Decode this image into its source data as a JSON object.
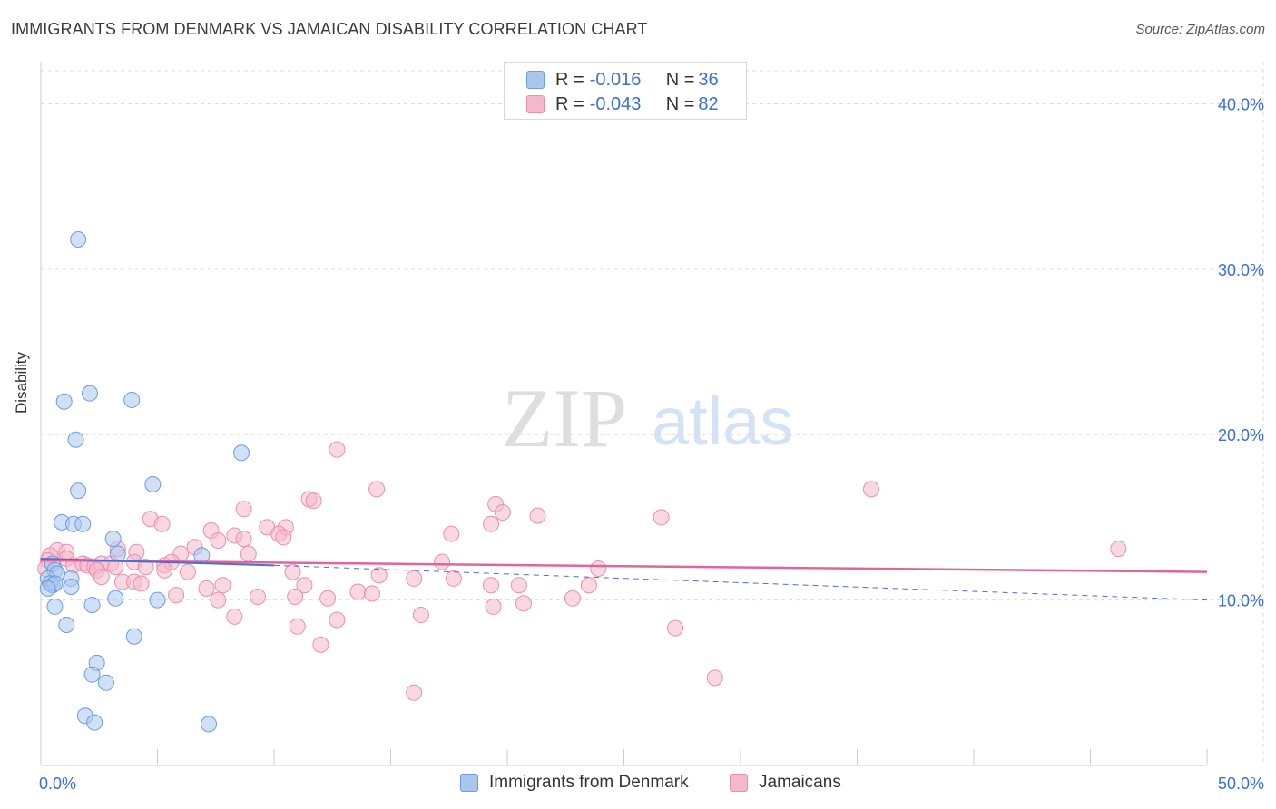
{
  "title": "IMMIGRANTS FROM DENMARK VS JAMAICAN DISABILITY CORRELATION CHART",
  "source": "Source: ZipAtlas.com",
  "watermark": {
    "zip": "ZIP",
    "atlas": "atlas"
  },
  "colors": {
    "blue_fill": "#a9c6ef",
    "blue_stroke": "#6f9be0",
    "blue_line": "#4a6fd0",
    "pink_fill": "#f5b8cb",
    "pink_stroke": "#ea8fae",
    "pink_line": "#e2659a",
    "axis_text": "#3b6fd1",
    "grid": "#dddddd"
  },
  "legend": {
    "rows": [
      {
        "r_label": "R = ",
        "r_value": "-0.016",
        "n_label": "N = ",
        "n_value": "36"
      },
      {
        "r_label": "R = ",
        "r_value": "-0.043",
        "n_label": "N = ",
        "n_value": "82"
      }
    ]
  },
  "bottom_legend": [
    "Immigrants from Denmark",
    "Jamaicans"
  ],
  "chart_data": {
    "type": "scatter",
    "title": "IMMIGRANTS FROM DENMARK VS JAMAICAN DISABILITY CORRELATION CHART",
    "xlabel": "",
    "ylabel": "Disability",
    "xlim": [
      0,
      50
    ],
    "ylim": [
      0,
      42
    ],
    "x_tick_labels": [
      "0.0%",
      "50.0%"
    ],
    "y_ticks": [
      10,
      20,
      30,
      40
    ],
    "y_tick_labels": [
      "10.0%",
      "20.0%",
      "30.0%",
      "40.0%"
    ],
    "grid": true,
    "series": [
      {
        "name": "Immigrants from Denmark",
        "r": -0.016,
        "n": 36,
        "trend": {
          "x": [
            0,
            10
          ],
          "y": [
            12.5,
            12.1
          ],
          "dashed_extension": {
            "x": [
              10,
              50
            ],
            "y": [
              12.1,
              10.0
            ]
          }
        },
        "points": [
          [
            1.6,
            31.8
          ],
          [
            2.1,
            22.5
          ],
          [
            3.9,
            22.1
          ],
          [
            1.0,
            22.0
          ],
          [
            1.5,
            19.7
          ],
          [
            8.6,
            18.9
          ],
          [
            4.8,
            17.0
          ],
          [
            1.6,
            16.6
          ],
          [
            0.9,
            14.7
          ],
          [
            1.4,
            14.6
          ],
          [
            1.8,
            14.6
          ],
          [
            3.1,
            13.7
          ],
          [
            3.3,
            12.8
          ],
          [
            6.9,
            12.7
          ],
          [
            0.5,
            12.2
          ],
          [
            0.6,
            11.8
          ],
          [
            0.7,
            11.6
          ],
          [
            0.3,
            11.3
          ],
          [
            1.3,
            11.3
          ],
          [
            0.4,
            11.0
          ],
          [
            0.5,
            10.9
          ],
          [
            0.6,
            11.0
          ],
          [
            0.3,
            10.7
          ],
          [
            1.3,
            10.8
          ],
          [
            3.2,
            10.1
          ],
          [
            5.0,
            10.0
          ],
          [
            0.6,
            9.6
          ],
          [
            2.2,
            9.7
          ],
          [
            1.1,
            8.5
          ],
          [
            4.0,
            7.8
          ],
          [
            2.4,
            6.2
          ],
          [
            2.2,
            5.5
          ],
          [
            2.8,
            5.0
          ],
          [
            1.9,
            3.0
          ],
          [
            2.3,
            2.6
          ],
          [
            7.2,
            2.5
          ]
        ]
      },
      {
        "name": "Jamaicans",
        "r": -0.043,
        "n": 82,
        "trend": {
          "x": [
            0,
            50
          ],
          "y": [
            12.4,
            11.7
          ]
        },
        "points": [
          [
            12.7,
            19.1
          ],
          [
            14.4,
            16.7
          ],
          [
            35.6,
            16.7
          ],
          [
            11.5,
            16.1
          ],
          [
            11.7,
            16.0
          ],
          [
            19.5,
            15.8
          ],
          [
            8.7,
            15.5
          ],
          [
            19.8,
            15.3
          ],
          [
            21.3,
            15.1
          ],
          [
            26.6,
            15.0
          ],
          [
            4.7,
            14.9
          ],
          [
            5.2,
            14.6
          ],
          [
            19.3,
            14.6
          ],
          [
            9.7,
            14.4
          ],
          [
            10.5,
            14.4
          ],
          [
            7.3,
            14.2
          ],
          [
            17.6,
            14.0
          ],
          [
            8.3,
            13.9
          ],
          [
            10.2,
            14.0
          ],
          [
            10.4,
            13.8
          ],
          [
            8.7,
            13.7
          ],
          [
            7.6,
            13.6
          ],
          [
            6.6,
            13.2
          ],
          [
            3.3,
            13.1
          ],
          [
            0.7,
            13.0
          ],
          [
            46.2,
            13.1
          ],
          [
            1.1,
            12.9
          ],
          [
            0.4,
            12.7
          ],
          [
            4.1,
            12.9
          ],
          [
            6.0,
            12.8
          ],
          [
            8.9,
            12.8
          ],
          [
            0.3,
            12.4
          ],
          [
            1.1,
            12.5
          ],
          [
            1.4,
            12.1
          ],
          [
            1.8,
            12.2
          ],
          [
            2.0,
            12.1
          ],
          [
            2.3,
            12.0
          ],
          [
            2.6,
            12.2
          ],
          [
            3.0,
            12.2
          ],
          [
            3.2,
            12.0
          ],
          [
            4.0,
            12.3
          ],
          [
            4.5,
            12.0
          ],
          [
            5.3,
            12.1
          ],
          [
            5.6,
            12.3
          ],
          [
            17.2,
            12.3
          ],
          [
            23.9,
            11.9
          ],
          [
            2.4,
            11.8
          ],
          [
            5.3,
            11.8
          ],
          [
            6.3,
            11.7
          ],
          [
            10.8,
            11.7
          ],
          [
            14.5,
            11.5
          ],
          [
            16.0,
            11.3
          ],
          [
            17.7,
            11.3
          ],
          [
            2.6,
            11.4
          ],
          [
            3.5,
            11.1
          ],
          [
            4.0,
            11.1
          ],
          [
            4.3,
            11.0
          ],
          [
            7.1,
            10.7
          ],
          [
            7.8,
            10.9
          ],
          [
            11.3,
            10.9
          ],
          [
            19.3,
            10.9
          ],
          [
            20.5,
            10.9
          ],
          [
            23.5,
            10.9
          ],
          [
            13.6,
            10.5
          ],
          [
            14.2,
            10.4
          ],
          [
            5.8,
            10.3
          ],
          [
            9.3,
            10.2
          ],
          [
            10.9,
            10.2
          ],
          [
            12.3,
            10.1
          ],
          [
            7.6,
            10.0
          ],
          [
            22.8,
            10.1
          ],
          [
            19.4,
            9.6
          ],
          [
            20.7,
            9.8
          ],
          [
            16.3,
            9.1
          ],
          [
            8.3,
            9.0
          ],
          [
            12.7,
            8.8
          ],
          [
            11.0,
            8.4
          ],
          [
            27.2,
            8.3
          ],
          [
            12.0,
            7.3
          ],
          [
            28.9,
            5.3
          ],
          [
            16.0,
            4.4
          ],
          [
            0.2,
            11.9
          ]
        ]
      }
    ]
  }
}
